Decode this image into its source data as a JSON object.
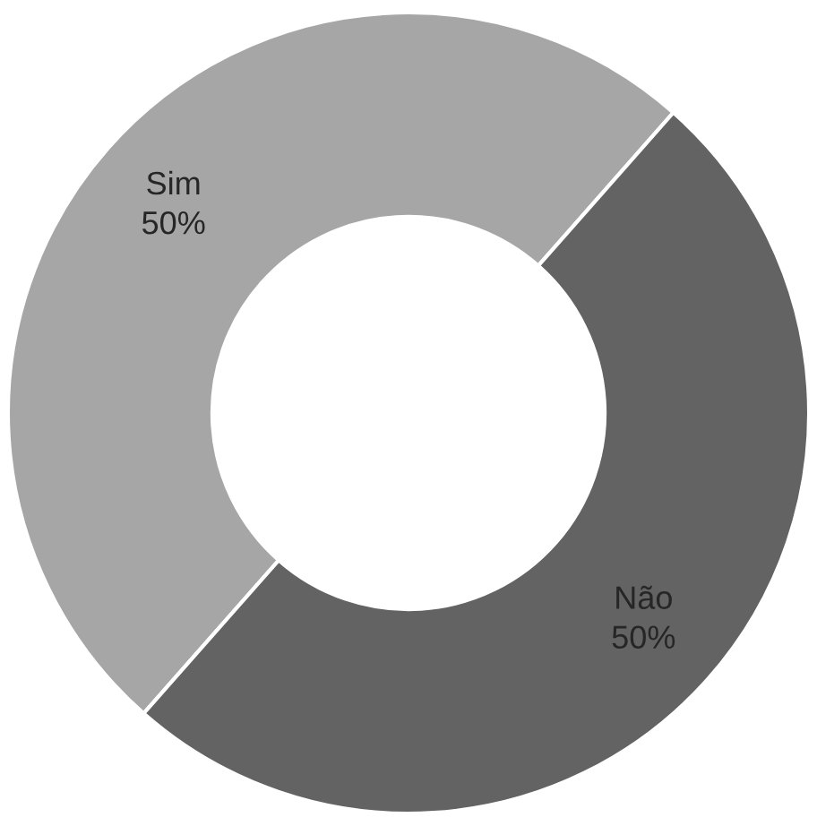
{
  "chart_data": {
    "type": "donut",
    "categories": [
      "Sim",
      "Não"
    ],
    "values": [
      50,
      50
    ],
    "colors": [
      "#a6a6a6",
      "#636363"
    ],
    "value_labels": [
      "50%",
      "50%"
    ],
    "legend": false
  }
}
